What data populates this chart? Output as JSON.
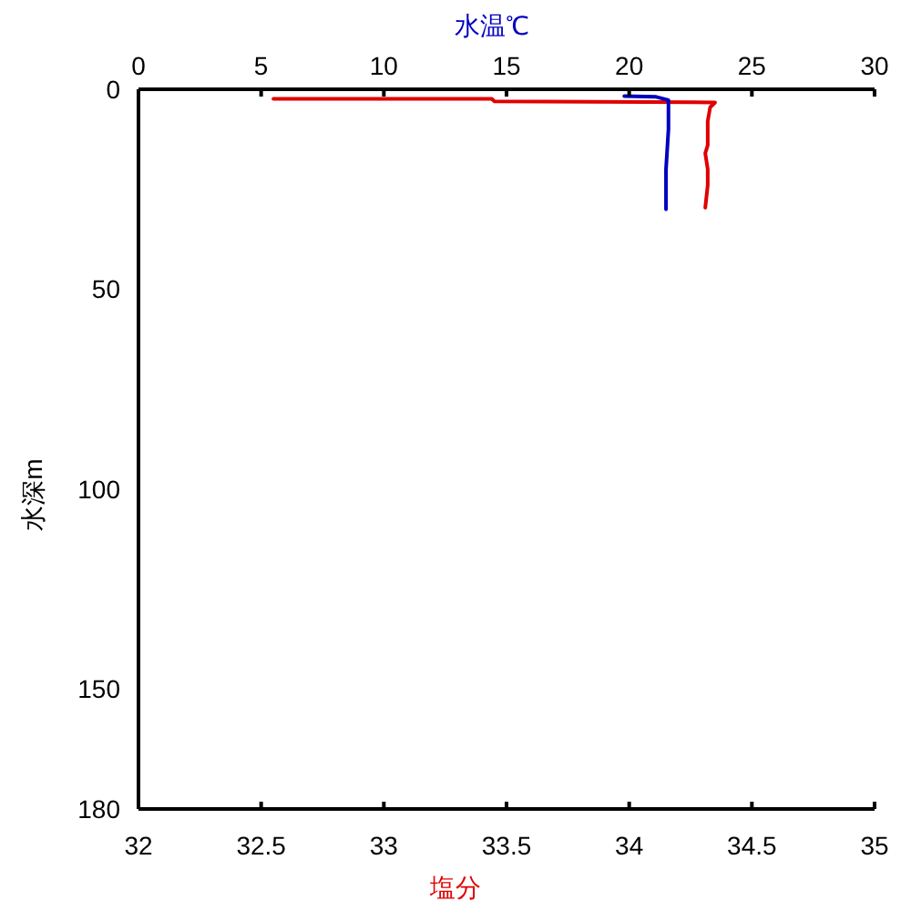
{
  "chart_data": {
    "type": "line",
    "x2label": "水温℃",
    "xlabel": "塩分",
    "ylabel": "水深m",
    "xlim": [
      32,
      35
    ],
    "xticks": [
      32,
      32.5,
      33,
      33.5,
      34,
      34.5,
      35
    ],
    "x2lim": [
      0,
      30
    ],
    "x2ticks": [
      0,
      5,
      10,
      15,
      20,
      25,
      30
    ],
    "ylim": [
      180,
      0
    ],
    "yticks": [
      0,
      50,
      100,
      150,
      180
    ],
    "line_style": "solid",
    "series": [
      {
        "color": "#e00000",
        "x": [
          32.55,
          33.44,
          33.45,
          34.35,
          34.33,
          34.32,
          34.32,
          34.31,
          34.32,
          34.32,
          34.31
        ],
        "values": [
          2.4,
          2.4,
          3.0,
          3.3,
          4.5,
          8,
          14,
          16,
          20,
          24,
          29.6
        ]
      },
      {
        "color": "#0000c0",
        "axis": "x2",
        "x": [
          19.8,
          21.1,
          21.6,
          21.6,
          21.5,
          21.5
        ],
        "values": [
          1.7,
          1.9,
          2.7,
          10,
          20,
          30
        ]
      }
    ]
  }
}
